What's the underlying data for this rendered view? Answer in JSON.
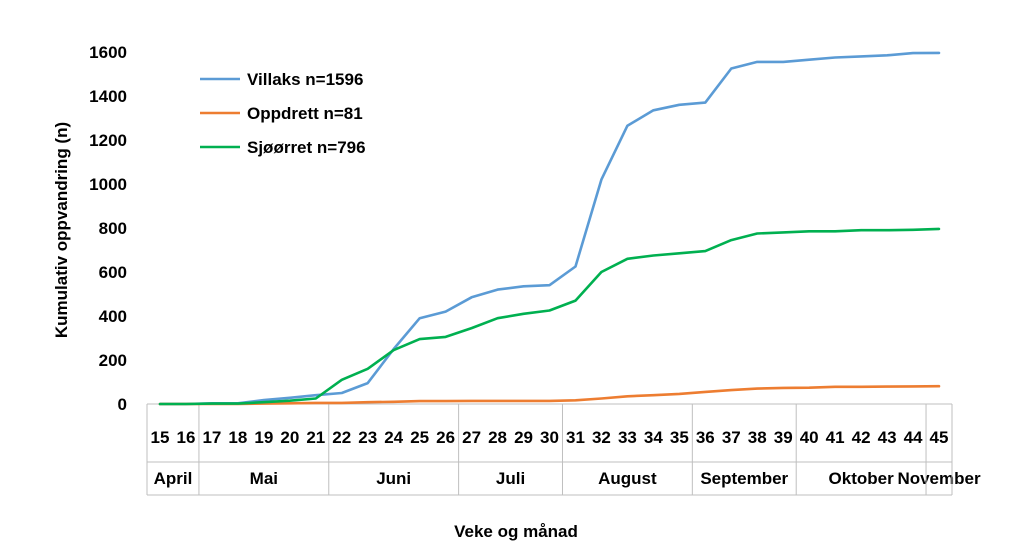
{
  "chart_data": {
    "type": "line",
    "xlabel": "Veke og månad",
    "ylabel": "Kumulativ oppvandring (n)",
    "ylim": [
      0,
      1600
    ],
    "yticks": [
      0,
      200,
      400,
      600,
      800,
      1000,
      1200,
      1400,
      1600
    ],
    "x": [
      "15",
      "16",
      "17",
      "18",
      "19",
      "20",
      "21",
      "22",
      "23",
      "24",
      "25",
      "26",
      "27",
      "28",
      "29",
      "30",
      "31",
      "32",
      "33",
      "34",
      "35",
      "36",
      "37",
      "38",
      "39",
      "40",
      "41",
      "42",
      "43",
      "44",
      "45"
    ],
    "months": [
      {
        "name": "April",
        "from": "15",
        "to": "16"
      },
      {
        "name": "Mai",
        "from": "17",
        "to": "21"
      },
      {
        "name": "Juni",
        "from": "22",
        "to": "26"
      },
      {
        "name": "Juli",
        "from": "27",
        "to": "30"
      },
      {
        "name": "August",
        "from": "31",
        "to": "35"
      },
      {
        "name": "September",
        "from": "36",
        "to": "39"
      },
      {
        "name": "Oktober",
        "from": "40",
        "to": "44"
      },
      {
        "name": "November",
        "from": "45",
        "to": "45"
      }
    ],
    "legend_position": "top-left",
    "grid": false,
    "series": [
      {
        "name": "Villaks n=1596",
        "color": "#5B9BD5",
        "values": [
          0,
          0,
          3,
          3,
          18,
          28,
          40,
          50,
          95,
          250,
          390,
          420,
          485,
          520,
          535,
          540,
          625,
          1020,
          1265,
          1335,
          1360,
          1370,
          1525,
          1555,
          1555,
          1565,
          1575,
          1580,
          1585,
          1595,
          1596
        ]
      },
      {
        "name": "Oppdrett n=81",
        "color": "#ED7D31",
        "values": [
          0,
          0,
          0,
          0,
          2,
          3,
          5,
          5,
          8,
          10,
          13,
          13,
          14,
          14,
          14,
          14,
          17,
          25,
          35,
          40,
          46,
          55,
          63,
          70,
          73,
          74,
          78,
          78,
          79,
          80,
          81
        ]
      },
      {
        "name": "Sjøørret n=796",
        "color": "#00B050",
        "values": [
          0,
          0,
          2,
          2,
          8,
          15,
          25,
          110,
          160,
          245,
          295,
          305,
          345,
          390,
          410,
          425,
          470,
          600,
          660,
          675,
          685,
          695,
          745,
          775,
          780,
          785,
          785,
          790,
          790,
          792,
          796
        ]
      }
    ]
  }
}
